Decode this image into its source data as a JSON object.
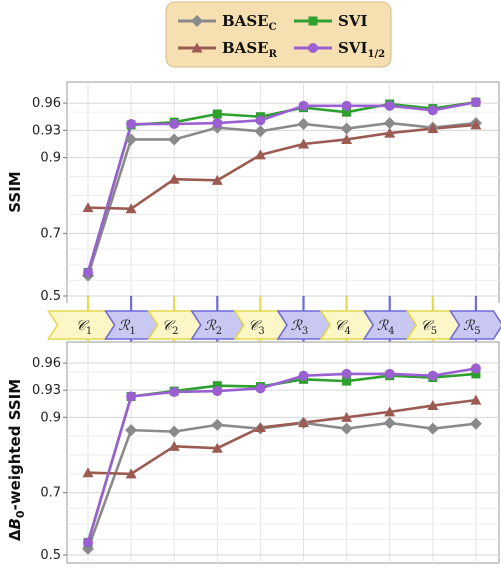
{
  "chart_data": [
    {
      "type": "line",
      "ylabel": "SSIM",
      "ylim": [
        0.49,
        0.97
      ],
      "yticks": [
        0.5,
        0.7,
        0.9,
        0.93,
        0.96
      ],
      "ytick_labels": [
        "0.5",
        "0.7",
        "0.9",
        "0.93",
        "0.96"
      ],
      "grid": true,
      "x": [
        1,
        2,
        3,
        4,
        5,
        6,
        7,
        8,
        9,
        10
      ],
      "series": [
        {
          "name": "BASE_C",
          "color": "#8a8a8a",
          "marker": "diamond",
          "values": [
            0.565,
            0.92,
            0.92,
            0.933,
            0.929,
            0.937,
            0.932,
            0.938,
            0.933,
            0.938
          ]
        },
        {
          "name": "BASE_R",
          "color": "#9c5b52",
          "marker": "triangle",
          "values": [
            0.768,
            0.765,
            0.843,
            0.84,
            0.903,
            0.915,
            0.92,
            0.927,
            0.932,
            0.936
          ]
        },
        {
          "name": "SVI",
          "color": "#2ea02e",
          "marker": "square",
          "values": [
            0.575,
            0.936,
            0.939,
            0.948,
            0.945,
            0.955,
            0.95,
            0.959,
            0.954,
            0.961
          ]
        },
        {
          "name": "SVI_1/2",
          "color": "#9a5fd1",
          "marker": "circle",
          "values": [
            0.575,
            0.937,
            0.937,
            0.938,
            0.941,
            0.957,
            0.957,
            0.957,
            0.952,
            0.961
          ]
        }
      ]
    },
    {
      "type": "line",
      "ylabel": "ΔB0-weighted SSIM",
      "ylim": [
        0.49,
        0.97
      ],
      "yticks": [
        0.5,
        0.7,
        0.9,
        0.93,
        0.96
      ],
      "ytick_labels": [
        "0.5",
        "0.7",
        "0.9",
        "0.93",
        "0.96"
      ],
      "grid": true,
      "x": [
        1,
        2,
        3,
        4,
        5,
        6,
        7,
        8,
        9,
        10
      ],
      "series": [
        {
          "name": "BASE_C",
          "color": "#8a8a8a",
          "marker": "diamond",
          "values": [
            0.52,
            0.866,
            0.862,
            0.88,
            0.87,
            0.885,
            0.87,
            0.885,
            0.87,
            0.883
          ]
        },
        {
          "name": "BASE_R",
          "color": "#9c5b52",
          "marker": "triangle",
          "values": [
            0.753,
            0.75,
            0.823,
            0.818,
            0.873,
            0.886,
            0.9,
            0.906,
            0.913,
            0.919
          ]
        },
        {
          "name": "SVI",
          "color": "#2ea02e",
          "marker": "square",
          "values": [
            0.54,
            0.923,
            0.929,
            0.935,
            0.934,
            0.942,
            0.94,
            0.946,
            0.944,
            0.948
          ]
        },
        {
          "name": "SVI_1/2",
          "color": "#9a5fd1",
          "marker": "circle",
          "values": [
            0.54,
            0.923,
            0.928,
            0.929,
            0.932,
            0.946,
            0.948,
            0.948,
            0.946,
            0.954
          ]
        }
      ]
    }
  ],
  "legend": {
    "placement": "top-center",
    "entries": [
      {
        "base": "BASE",
        "sub": "C",
        "series": "BASE_C"
      },
      {
        "base": "SVI",
        "sub": "",
        "series": "SVI"
      },
      {
        "base": "BASE",
        "sub": "R",
        "series": "BASE_R"
      },
      {
        "base": "SVI",
        "sub": "1/2",
        "series": "SVI_1/2"
      }
    ],
    "background": "#f6dfb0",
    "border": "#d7b98a"
  },
  "steps": {
    "labels": [
      {
        "base": "C",
        "sub": "1",
        "kind": "C"
      },
      {
        "base": "R",
        "sub": "1",
        "kind": "R"
      },
      {
        "base": "C",
        "sub": "2",
        "kind": "C"
      },
      {
        "base": "R",
        "sub": "2",
        "kind": "R"
      },
      {
        "base": "C",
        "sub": "3",
        "kind": "C"
      },
      {
        "base": "R",
        "sub": "3",
        "kind": "R"
      },
      {
        "base": "C",
        "sub": "4",
        "kind": "C"
      },
      {
        "base": "R",
        "sub": "4",
        "kind": "R"
      },
      {
        "base": "C",
        "sub": "5",
        "kind": "C"
      },
      {
        "base": "R",
        "sub": "5",
        "kind": "R"
      }
    ],
    "colors": {
      "C_fill": "#fdf7c8",
      "C_stroke": "#e6d84f",
      "R_fill": "#c9c8f3",
      "R_stroke": "#6f6bdc"
    }
  }
}
